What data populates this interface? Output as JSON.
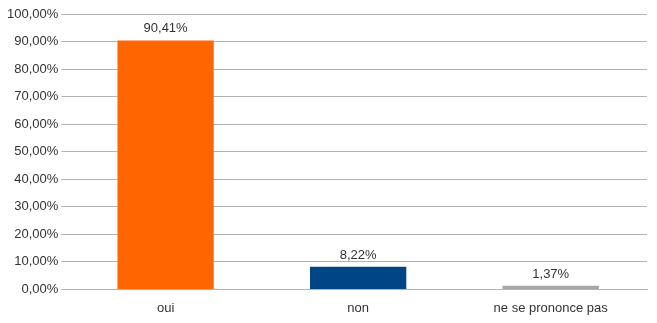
{
  "chart_data": {
    "type": "bar",
    "categories": [
      "oui",
      "non",
      "ne se prononce pas"
    ],
    "values": [
      90.41,
      8.22,
      1.37
    ],
    "value_labels": [
      "90,41%",
      "8,22%",
      "1,37%"
    ],
    "colors": [
      "#ff6600",
      "#004586",
      "#a6a6a6"
    ],
    "ylim": [
      0,
      100
    ],
    "yticks": [
      {
        "value": 0,
        "label": "0,00%"
      },
      {
        "value": 10,
        "label": "10,00%"
      },
      {
        "value": 20,
        "label": "20,00%"
      },
      {
        "value": 30,
        "label": "30,00%"
      },
      {
        "value": 40,
        "label": "40,00%"
      },
      {
        "value": 50,
        "label": "50,00%"
      },
      {
        "value": 60,
        "label": "60,00%"
      },
      {
        "value": 70,
        "label": "70,00%"
      },
      {
        "value": 80,
        "label": "80,00%"
      },
      {
        "value": 90,
        "label": "90,00%"
      },
      {
        "value": 100,
        "label": "100,00%"
      }
    ],
    "grid": true,
    "data_labels": true
  }
}
